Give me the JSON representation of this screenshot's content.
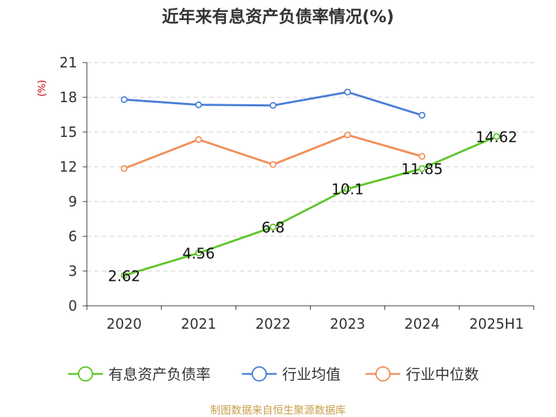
{
  "title": "近年来有息资产负债率情况(%)",
  "source": "制图数据来自恒生聚源数据库",
  "colors": {
    "source": "#c8a04a",
    "y_unit": "#cc0000"
  },
  "chart_data": {
    "type": "line",
    "title": "近年来有息资产负债率情况(%)",
    "ylabel": "(%)",
    "xlabel": "",
    "categories": [
      "2020",
      "2021",
      "2022",
      "2023",
      "2024",
      "2025H1"
    ],
    "ylim": [
      0,
      21
    ],
    "yticks": [
      0,
      3,
      6,
      9,
      12,
      15,
      18,
      21
    ],
    "grid": true,
    "legend_position": "bottom",
    "series": [
      {
        "name": "有息资产负债率",
        "color": "#5fc52a",
        "values": [
          2.62,
          4.56,
          6.8,
          10.1,
          11.85,
          14.62
        ],
        "labels": [
          "2.62",
          "4.56",
          "6.8",
          "10.1",
          "11.85",
          "14.62"
        ]
      },
      {
        "name": "行业均值",
        "color": "#4a7fd6",
        "values": [
          17.8,
          17.35,
          17.3,
          18.45,
          16.45,
          null
        ]
      },
      {
        "name": "行业中位数",
        "color": "#f28e5a",
        "values": [
          11.85,
          14.35,
          12.2,
          14.75,
          12.9,
          null
        ]
      }
    ]
  }
}
